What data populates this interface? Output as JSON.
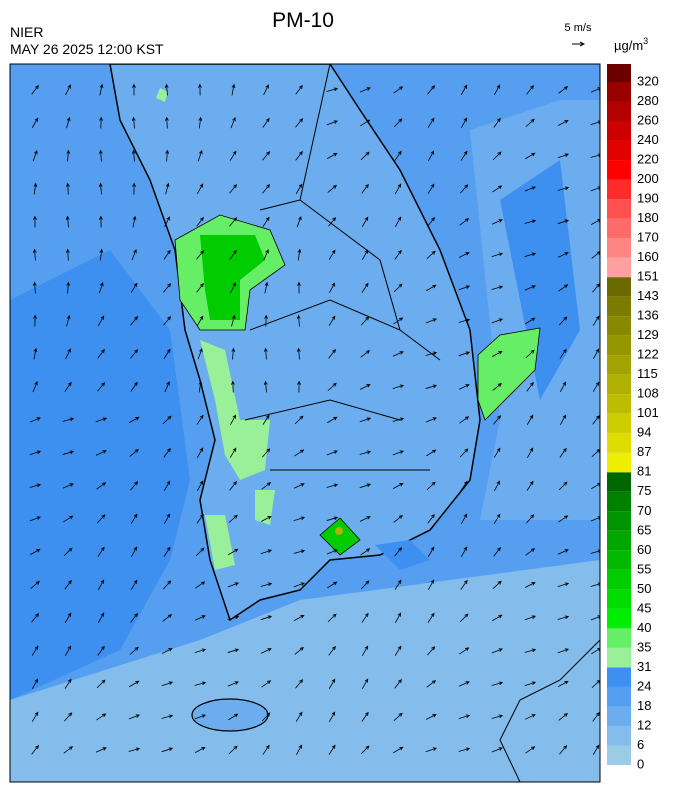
{
  "header": {
    "title": "PM-10",
    "agency": "NIER",
    "datetime": "MAY 26 2025 12:00 KST",
    "wind_scale": "5 m/s"
  },
  "colorbar": {
    "unit": {
      "base": "µg/m",
      "sup": "3"
    },
    "labels": [
      0,
      6,
      12,
      18,
      24,
      31,
      35,
      40,
      45,
      50,
      55,
      60,
      65,
      70,
      75,
      81,
      87,
      94,
      101,
      108,
      115,
      122,
      129,
      136,
      143,
      151,
      160,
      170,
      180,
      190,
      200,
      220,
      240,
      260,
      280,
      320
    ],
    "colors": [
      "#9ccbe6",
      "#84bdec",
      "#6cadef",
      "#559ef0",
      "#3d8ff0",
      "#99f099",
      "#66ee66",
      "#00ee00",
      "#00dc00",
      "#00cc00",
      "#00b900",
      "#00a700",
      "#009500",
      "#008200",
      "#006800",
      "#eeee00",
      "#dddd00",
      "#cdcd00",
      "#bdbd00",
      "#b0b000",
      "#a3a300",
      "#969600",
      "#898900",
      "#7b7b00",
      "#6a6a00",
      "#ff9f9f",
      "#ff8585",
      "#ff6b6b",
      "#ff5050",
      "#ff2a2a",
      "#ff0000",
      "#e30000",
      "#cc0000",
      "#b30000",
      "#990000",
      "#6b0000"
    ]
  }
}
